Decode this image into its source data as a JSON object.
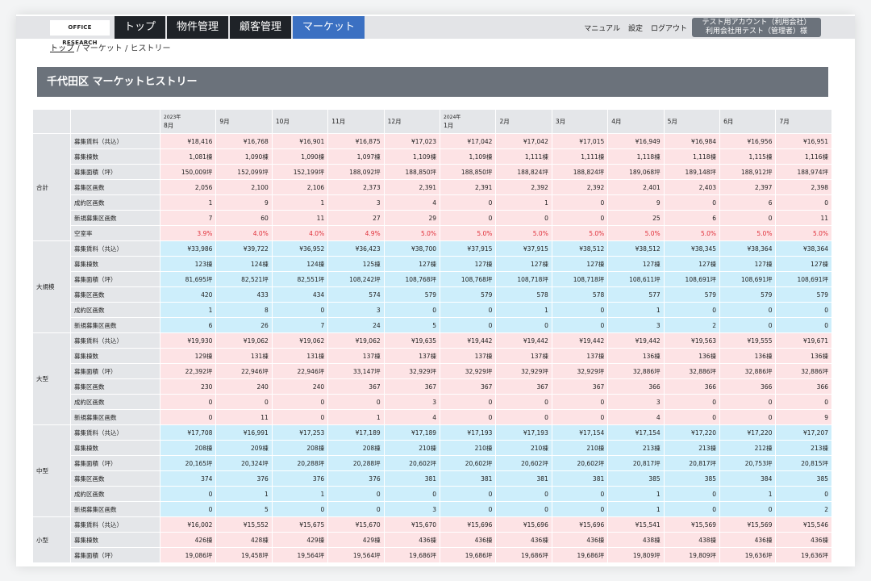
{
  "header": {
    "logo": "OFFICE RESEARCH",
    "nav": [
      {
        "label": "トップ"
      },
      {
        "label": "物件管理"
      },
      {
        "label": "顧客管理"
      },
      {
        "label": "マーケット",
        "active": true
      }
    ],
    "links": [
      "マニュアル",
      "設定",
      "ログアウト"
    ],
    "account_line1": "テスト用アカウント（利用会社）",
    "account_line2": "利用会社用テスト（管理者）様"
  },
  "breadcrumb": {
    "home": "トップ",
    "sep": "/",
    "items": [
      "マーケット",
      "ヒストリー"
    ]
  },
  "page_title": "千代田区 マーケットヒストリー",
  "colors": {
    "pink": "#fde3e5",
    "blue": "#cdeefb",
    "red": "#e0303a",
    "active_tab": "#3b70c2"
  },
  "table": {
    "columns": [
      [
        "2023年",
        "8月"
      ],
      [
        "",
        "9月"
      ],
      [
        "",
        "10月"
      ],
      [
        "",
        "11月"
      ],
      [
        "",
        "12月"
      ],
      [
        "2024年",
        "1月"
      ],
      [
        "",
        "2月"
      ],
      [
        "",
        "3月"
      ],
      [
        "",
        "4月"
      ],
      [
        "",
        "5月"
      ],
      [
        "",
        "6月"
      ],
      [
        "",
        "7月"
      ]
    ],
    "groups": [
      {
        "name": "合計",
        "tone": "pink",
        "rows": [
          {
            "label": "募集賃料（共込）",
            "values": [
              "¥18,416",
              "¥16,768",
              "¥16,901",
              "¥16,875",
              "¥17,023",
              "¥17,042",
              "¥17,042",
              "¥17,015",
              "¥16,949",
              "¥16,984",
              "¥16,956",
              "¥16,951"
            ]
          },
          {
            "label": "募集棟数",
            "values": [
              "1,081棟",
              "1,090棟",
              "1,090棟",
              "1,097棟",
              "1,109棟",
              "1,109棟",
              "1,111棟",
              "1,111棟",
              "1,118棟",
              "1,118棟",
              "1,115棟",
              "1,116棟"
            ]
          },
          {
            "label": "募集面積（坪）",
            "values": [
              "150,009坪",
              "152,099坪",
              "152,199坪",
              "188,092坪",
              "188,850坪",
              "188,850坪",
              "188,824坪",
              "188,824坪",
              "189,068坪",
              "189,148坪",
              "188,912坪",
              "188,974坪"
            ]
          },
          {
            "label": "募集区画数",
            "values": [
              "2,056",
              "2,100",
              "2,106",
              "2,373",
              "2,391",
              "2,391",
              "2,392",
              "2,392",
              "2,401",
              "2,403",
              "2,397",
              "2,398"
            ]
          },
          {
            "label": "成約区画数",
            "values": [
              "1",
              "9",
              "1",
              "3",
              "4",
              "0",
              "1",
              "0",
              "9",
              "0",
              "6",
              "0"
            ]
          },
          {
            "label": "新規募集区画数",
            "values": [
              "7",
              "60",
              "11",
              "27",
              "29",
              "0",
              "0",
              "0",
              "25",
              "6",
              "0",
              "11"
            ]
          },
          {
            "label": "空室率",
            "red": true,
            "values": [
              "3.9%",
              "4.0%",
              "4.0%",
              "4.9%",
              "5.0%",
              "5.0%",
              "5.0%",
              "5.0%",
              "5.0%",
              "5.0%",
              "5.0%",
              "5.0%"
            ]
          }
        ]
      },
      {
        "name": "大規模",
        "tone": "blue",
        "rows": [
          {
            "label": "募集賃料（共込）",
            "values": [
              "¥33,986",
              "¥39,722",
              "¥36,952",
              "¥36,423",
              "¥38,700",
              "¥37,915",
              "¥37,915",
              "¥38,512",
              "¥38,512",
              "¥38,345",
              "¥38,364",
              "¥38,364"
            ]
          },
          {
            "label": "募集棟数",
            "values": [
              "123棟",
              "124棟",
              "124棟",
              "125棟",
              "127棟",
              "127棟",
              "127棟",
              "127棟",
              "127棟",
              "127棟",
              "127棟",
              "127棟"
            ]
          },
          {
            "label": "募集面積（坪）",
            "values": [
              "81,695坪",
              "82,521坪",
              "82,551坪",
              "108,242坪",
              "108,768坪",
              "108,768坪",
              "108,718坪",
              "108,718坪",
              "108,611坪",
              "108,691坪",
              "108,691坪",
              "108,691坪"
            ]
          },
          {
            "label": "募集区画数",
            "values": [
              "420",
              "433",
              "434",
              "574",
              "579",
              "579",
              "578",
              "578",
              "577",
              "579",
              "579",
              "579"
            ]
          },
          {
            "label": "成約区画数",
            "values": [
              "1",
              "8",
              "0",
              "3",
              "0",
              "0",
              "1",
              "0",
              "1",
              "0",
              "0",
              "0"
            ]
          },
          {
            "label": "新規募集区画数",
            "values": [
              "6",
              "26",
              "7",
              "24",
              "5",
              "0",
              "0",
              "0",
              "3",
              "2",
              "0",
              "0"
            ]
          }
        ]
      },
      {
        "name": "大型",
        "tone": "pink",
        "rows": [
          {
            "label": "募集賃料（共込）",
            "values": [
              "¥19,930",
              "¥19,062",
              "¥19,062",
              "¥19,062",
              "¥19,635",
              "¥19,442",
              "¥19,442",
              "¥19,442",
              "¥19,442",
              "¥19,563",
              "¥19,555",
              "¥19,671"
            ]
          },
          {
            "label": "募集棟数",
            "values": [
              "129棟",
              "131棟",
              "131棟",
              "137棟",
              "137棟",
              "137棟",
              "137棟",
              "137棟",
              "136棟",
              "136棟",
              "136棟",
              "136棟"
            ]
          },
          {
            "label": "募集面積（坪）",
            "values": [
              "22,392坪",
              "22,946坪",
              "22,946坪",
              "33,147坪",
              "32,929坪",
              "32,929坪",
              "32,929坪",
              "32,929坪",
              "32,886坪",
              "32,886坪",
              "32,886坪",
              "32,886坪"
            ]
          },
          {
            "label": "募集区画数",
            "values": [
              "230",
              "240",
              "240",
              "367",
              "367",
              "367",
              "367",
              "367",
              "366",
              "366",
              "366",
              "366"
            ]
          },
          {
            "label": "成約区画数",
            "values": [
              "0",
              "0",
              "0",
              "0",
              "3",
              "0",
              "0",
              "0",
              "3",
              "0",
              "0",
              "0"
            ]
          },
          {
            "label": "新規募集区画数",
            "values": [
              "0",
              "11",
              "0",
              "1",
              "4",
              "0",
              "0",
              "0",
              "4",
              "0",
              "0",
              "9"
            ]
          }
        ]
      },
      {
        "name": "中型",
        "tone": "blue",
        "rows": [
          {
            "label": "募集賃料（共込）",
            "values": [
              "¥17,708",
              "¥16,991",
              "¥17,253",
              "¥17,189",
              "¥17,189",
              "¥17,193",
              "¥17,193",
              "¥17,154",
              "¥17,154",
              "¥17,220",
              "¥17,220",
              "¥17,207"
            ]
          },
          {
            "label": "募集棟数",
            "values": [
              "208棟",
              "209棟",
              "208棟",
              "208棟",
              "210棟",
              "210棟",
              "210棟",
              "210棟",
              "213棟",
              "213棟",
              "212棟",
              "213棟"
            ]
          },
          {
            "label": "募集面積（坪）",
            "values": [
              "20,165坪",
              "20,324坪",
              "20,288坪",
              "20,288坪",
              "20,602坪",
              "20,602坪",
              "20,602坪",
              "20,602坪",
              "20,817坪",
              "20,817坪",
              "20,753坪",
              "20,815坪"
            ]
          },
          {
            "label": "募集区画数",
            "values": [
              "374",
              "376",
              "376",
              "376",
              "381",
              "381",
              "381",
              "381",
              "385",
              "385",
              "384",
              "385"
            ]
          },
          {
            "label": "成約区画数",
            "values": [
              "0",
              "1",
              "1",
              "0",
              "0",
              "0",
              "0",
              "0",
              "1",
              "0",
              "1",
              "0"
            ]
          },
          {
            "label": "新規募集区画数",
            "values": [
              "0",
              "5",
              "0",
              "0",
              "3",
              "0",
              "0",
              "0",
              "1",
              "0",
              "0",
              "2"
            ]
          }
        ]
      },
      {
        "name": "小型",
        "tone": "pink",
        "rows": [
          {
            "label": "募集賃料（共込）",
            "values": [
              "¥16,002",
              "¥15,552",
              "¥15,675",
              "¥15,670",
              "¥15,670",
              "¥15,696",
              "¥15,696",
              "¥15,696",
              "¥15,541",
              "¥15,569",
              "¥15,569",
              "¥15,546"
            ]
          },
          {
            "label": "募集棟数",
            "values": [
              "426棟",
              "428棟",
              "429棟",
              "429棟",
              "436棟",
              "436棟",
              "436棟",
              "436棟",
              "438棟",
              "438棟",
              "436棟",
              "436棟"
            ]
          },
          {
            "label": "募集面積（坪）",
            "values": [
              "19,086坪",
              "19,458坪",
              "19,564坪",
              "19,564坪",
              "19,686坪",
              "19,686坪",
              "19,686坪",
              "19,686坪",
              "19,809坪",
              "19,809坪",
              "19,636坪",
              "19,636坪"
            ]
          }
        ]
      }
    ]
  }
}
